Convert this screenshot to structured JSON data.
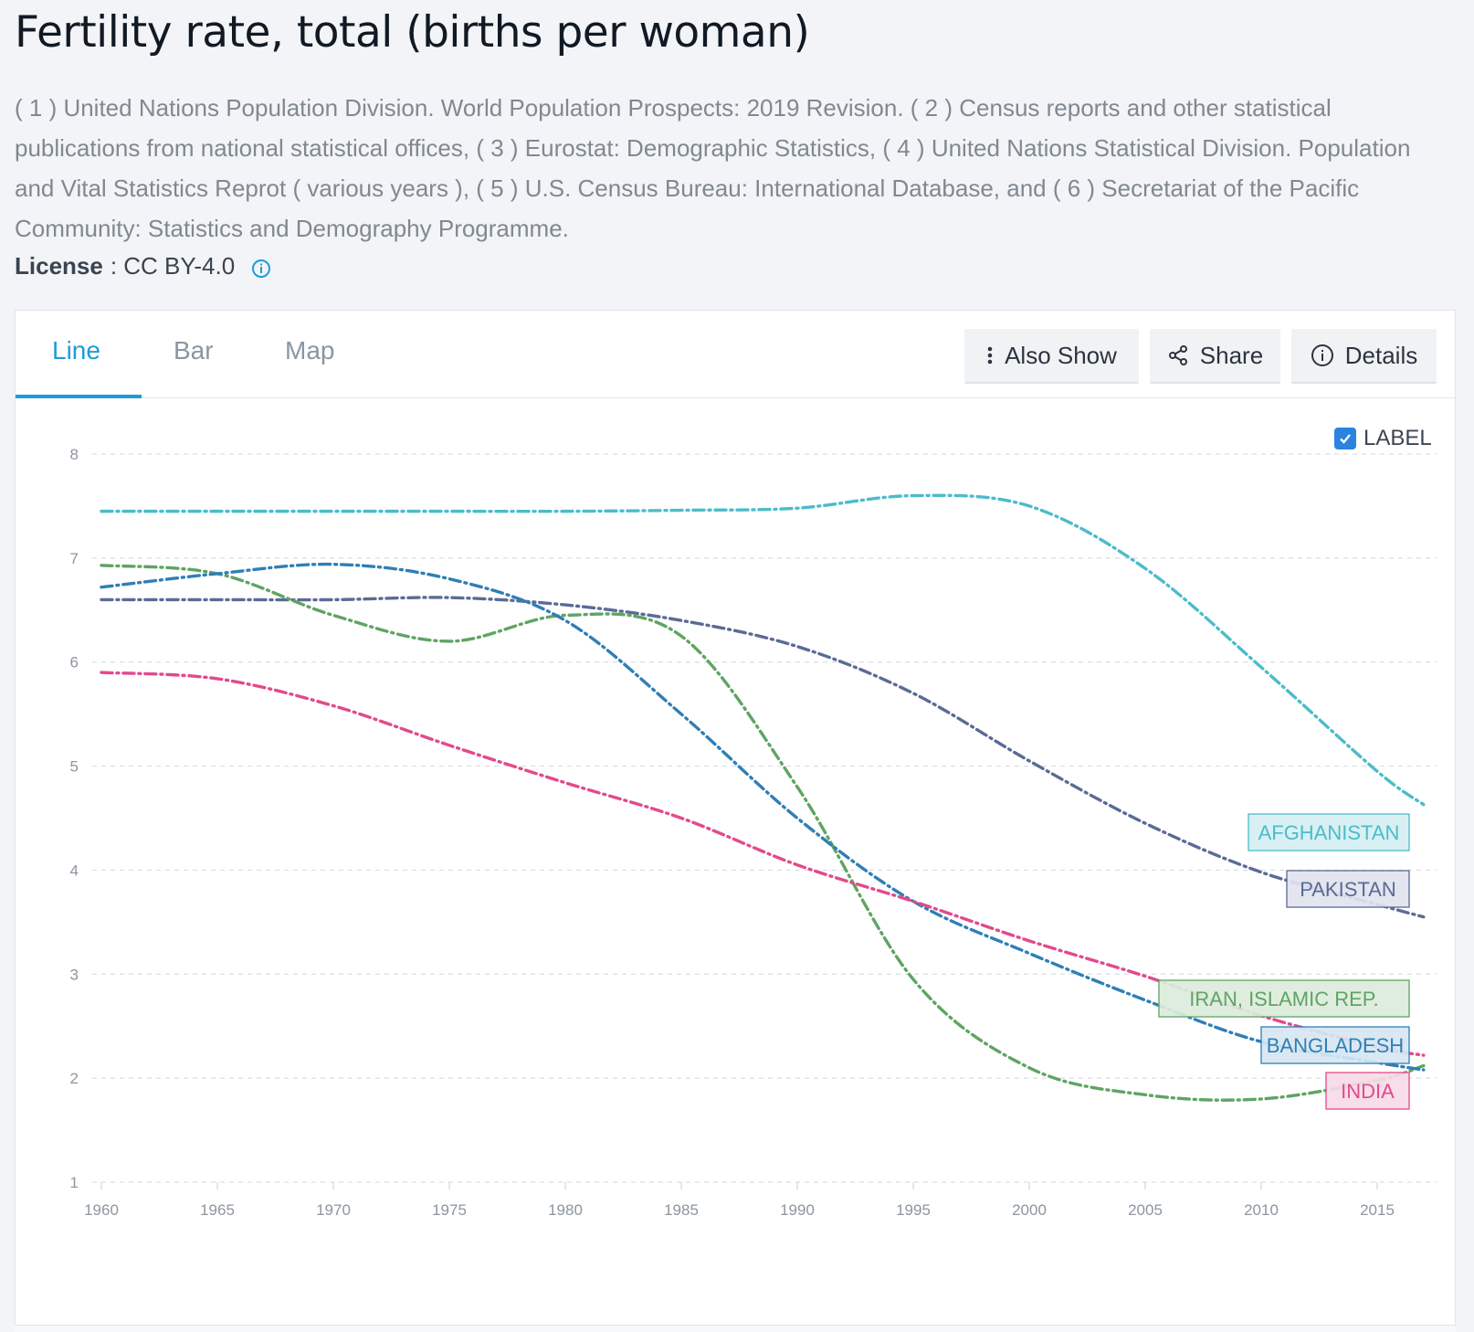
{
  "header": {
    "title": "Fertility rate, total (births per woman)",
    "source": "( 1 ) United Nations Population Division. World Population Prospects: 2019 Revision. ( 2 ) Census reports and other statistical publications from national statistical offices, ( 3 ) Eurostat: Demographic Statistics, ( 4 ) United Nations Statistical Division. Population and Vital Statistics Reprot ( various years ), ( 5 ) U.S. Census Bureau: International Database, and ( 6 ) Secretariat of the Pacific Community: Statistics and Demography Programme.",
    "license_label": "License",
    "license_value": ": CC BY-4.0"
  },
  "tabs": [
    {
      "label": "Line",
      "active": true
    },
    {
      "label": "Bar",
      "active": false
    },
    {
      "label": "Map",
      "active": false
    }
  ],
  "toolbar": {
    "also_show": "Also Show",
    "share": "Share",
    "details": "Details"
  },
  "label_toggle": {
    "label": "LABEL",
    "checked": true
  },
  "icons": {
    "info": "info-circle-icon",
    "kebab": "kebab-vertical-icon",
    "share": "share-icon",
    "details": "info-circle-icon",
    "check": "check-icon"
  },
  "colors": {
    "accent": "#1e9bd7",
    "checkbox": "#2b83e0"
  },
  "chart_data": {
    "type": "line",
    "xlim": [
      1960,
      2017
    ],
    "ylim": [
      1,
      8
    ],
    "xticks": [
      1960,
      1965,
      1970,
      1975,
      1980,
      1985,
      1990,
      1995,
      2000,
      2005,
      2010,
      2015
    ],
    "yticks": [
      1,
      2,
      3,
      4,
      5,
      6,
      7,
      8
    ],
    "grid": true,
    "x": [
      1960,
      1965,
      1970,
      1975,
      1980,
      1985,
      1990,
      1995,
      2000,
      2005,
      2010,
      2015,
      2017
    ],
    "series": [
      {
        "name": "AFGHANISTAN",
        "color": "#4cbcc9",
        "label_bg": "#d5eff2",
        "values": [
          7.45,
          7.45,
          7.45,
          7.45,
          7.45,
          7.46,
          7.48,
          7.6,
          7.5,
          6.9,
          5.95,
          4.95,
          4.63
        ]
      },
      {
        "name": "PAKISTAN",
        "color": "#5a6b95",
        "label_bg": "#e1e3ee",
        "values": [
          6.6,
          6.6,
          6.6,
          6.62,
          6.55,
          6.4,
          6.15,
          5.7,
          5.05,
          4.45,
          3.98,
          3.67,
          3.55
        ]
      },
      {
        "name": "IRAN, ISLAMIC REP.",
        "color": "#5fa463",
        "label_bg": "#dcecdc",
        "values": [
          6.93,
          6.85,
          6.45,
          6.2,
          6.45,
          6.25,
          4.8,
          2.95,
          2.1,
          1.84,
          1.8,
          1.98,
          2.12
        ]
      },
      {
        "name": "BANGLADESH",
        "color": "#2f7fb5",
        "label_bg": "#d7e6f2",
        "values": [
          6.72,
          6.85,
          6.94,
          6.8,
          6.4,
          5.5,
          4.5,
          3.7,
          3.2,
          2.75,
          2.35,
          2.15,
          2.08
        ]
      },
      {
        "name": "INDIA",
        "color": "#e24a8c",
        "label_bg": "#f6dbe7",
        "values": [
          5.9,
          5.84,
          5.58,
          5.2,
          4.84,
          4.5,
          4.05,
          3.7,
          3.32,
          2.98,
          2.6,
          2.3,
          2.22
        ]
      }
    ]
  }
}
